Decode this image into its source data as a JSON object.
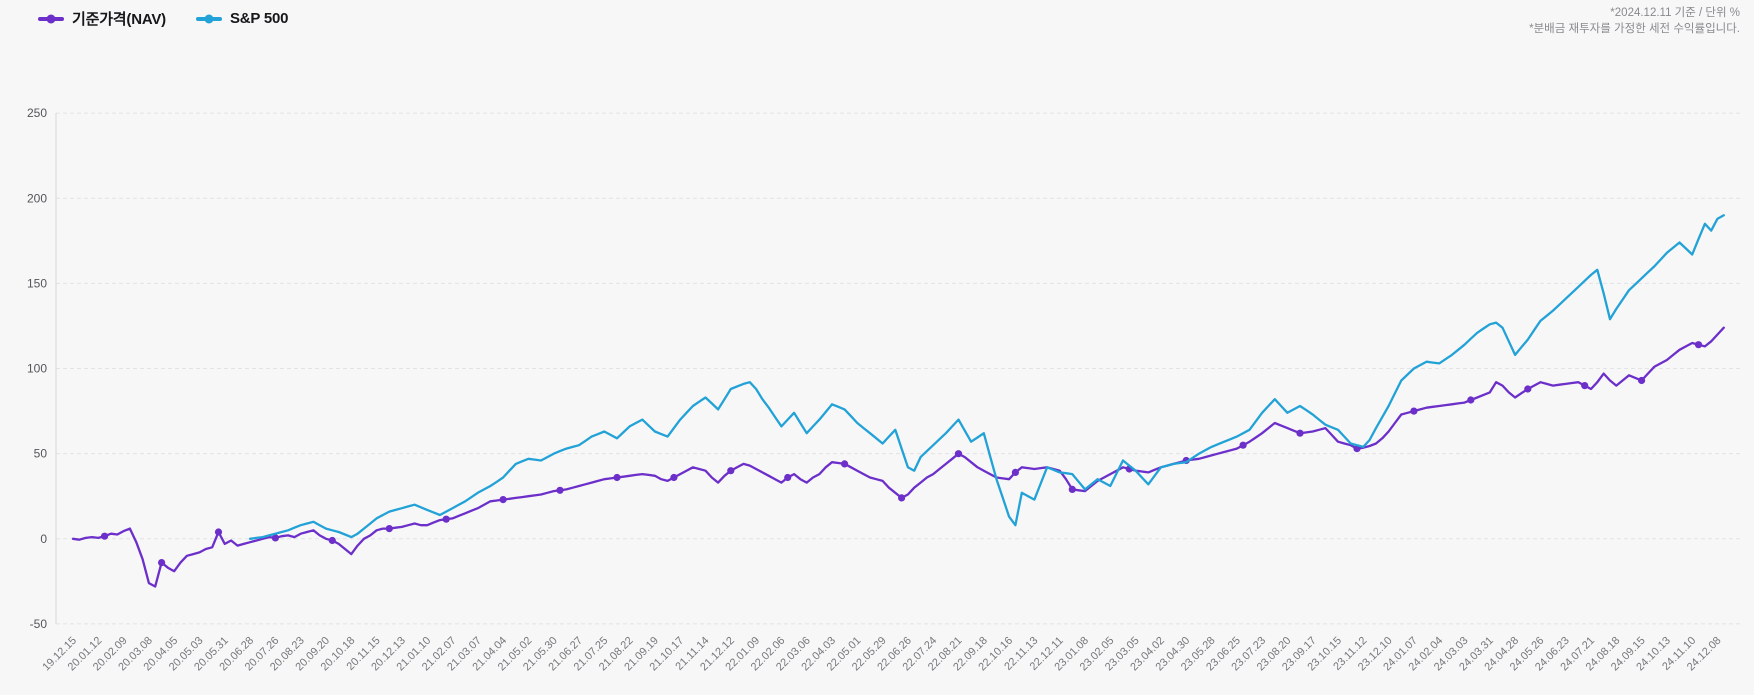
{
  "legend": [
    {
      "label": "기준가격(NAV)",
      "color": "#6c2fc9"
    },
    {
      "label": "S&P 500",
      "color": "#22a2d6"
    }
  ],
  "annotations": {
    "line1": "*2024.12.11 기준 / 단위 %",
    "line2": "*분배금 재투자를 가정한 세전 수익률입니다."
  },
  "chart_data": {
    "type": "line",
    "title": "",
    "xlabel": "",
    "ylabel": "",
    "x_unit": "weeks since 2019-12-15",
    "weeks_per_tick": 4,
    "ylim": [
      -50,
      250
    ],
    "y_ticks": [
      250,
      200,
      150,
      100,
      50,
      0,
      -50
    ],
    "grid": "horizontal dashed",
    "legend_position": "top-left",
    "x_tick_labels": [
      "19.12.15",
      "20.01.12",
      "20.02.09",
      "20.03.08",
      "20.04.05",
      "20.05.03",
      "20.05.31",
      "20.06.28",
      "20.07.26",
      "20.08.23",
      "20.09.20",
      "20.10.18",
      "20.11.15",
      "20.12.13",
      "21.01.10",
      "21.02.07",
      "21.03.07",
      "21.04.04",
      "21.05.02",
      "21.05.30",
      "21.06.27",
      "21.07.25",
      "21.08.22",
      "21.09.19",
      "21.10.17",
      "21.11.14",
      "21.12.12",
      "22.01.09",
      "22.02.06",
      "22.03.06",
      "22.04.03",
      "22.05.01",
      "22.05.29",
      "22.06.26",
      "22.07.24",
      "22.08.21",
      "22.09.18",
      "22.10.16",
      "22.11.13",
      "22.12.11",
      "23.01.08",
      "23.02.05",
      "23.03.05",
      "23.04.02",
      "23.04.30",
      "23.05.28",
      "23.06.25",
      "23.07.23",
      "23.08.20",
      "23.09.17",
      "23.10.15",
      "23.11.12",
      "23.12.10",
      "24.01.07",
      "24.02.04",
      "24.03.03",
      "24.03.31",
      "24.04.28",
      "24.05.26",
      "24.06.23",
      "24.07.21",
      "24.08.18",
      "24.09.15",
      "24.10.13",
      "24.11.10",
      "24.12.08"
    ],
    "series": [
      {
        "name": "기준가격(NAV)",
        "color": "#6c2fc9",
        "start_week": 0,
        "step_weeks": 1,
        "marker_start": 5,
        "marker_every": 9,
        "values": [
          0,
          -0.5,
          0.5,
          1,
          0.5,
          1.5,
          3,
          2.5,
          4.5,
          6,
          -2,
          -12,
          -26,
          -28,
          -14,
          -17,
          -19,
          -14,
          -10,
          -9,
          -8,
          -6,
          -5,
          4,
          -3,
          -1,
          -4,
          -3,
          -2,
          -1,
          0,
          1,
          0.5,
          1.5,
          2,
          1,
          3,
          4,
          5,
          2,
          0,
          -1,
          -3,
          -6,
          -9,
          -4,
          0,
          2,
          5,
          6,
          6,
          6.5,
          7,
          8,
          9,
          8,
          8,
          9.5,
          11,
          11.5,
          12,
          13.5,
          15,
          16.5,
          18,
          20,
          22,
          22.5,
          23,
          23.5,
          24,
          24.5,
          25,
          25.5,
          26,
          27,
          28,
          28.5,
          29,
          30,
          31,
          32,
          33,
          34,
          35,
          35.5,
          36,
          36.5,
          37,
          37.5,
          38,
          37.5,
          37,
          35,
          34,
          36,
          38,
          40,
          42,
          41,
          40,
          36,
          33,
          37,
          40,
          42,
          44,
          43,
          41,
          39,
          37,
          35,
          33,
          36,
          38,
          35,
          33,
          36,
          38,
          42,
          45,
          44.5,
          44,
          42,
          40,
          38,
          36,
          35,
          34,
          30,
          27,
          24,
          26,
          30,
          33,
          36,
          38,
          41,
          44,
          47,
          50,
          48,
          45,
          42,
          40,
          38,
          36,
          35.5,
          35,
          39,
          42,
          41.5,
          41,
          41.5,
          42,
          41,
          40,
          35,
          29,
          28.5,
          28,
          31,
          34,
          36,
          38,
          40,
          42,
          41,
          40,
          39.5,
          39,
          40.5,
          42,
          43,
          44,
          45,
          46,
          46.5,
          47,
          48,
          49,
          50,
          51,
          52,
          53,
          55,
          57,
          59.5,
          62,
          65,
          68,
          66.5,
          65,
          63.5,
          62,
          62.5,
          63,
          64,
          65,
          61,
          57,
          56,
          55,
          53,
          53.5,
          54.5,
          56,
          59,
          63,
          68,
          73,
          74,
          75,
          76,
          77,
          77.5,
          78,
          78.5,
          79,
          79.5,
          80,
          81.5,
          83,
          84.5,
          86,
          92,
          90,
          86,
          83,
          85.5,
          88,
          90,
          92,
          91,
          90,
          90.5,
          91,
          91.5,
          92,
          90,
          88,
          92,
          97,
          93,
          90,
          93,
          96,
          94.5,
          93,
          97,
          101,
          103,
          105,
          108,
          111,
          113,
          115,
          114,
          113,
          116,
          120,
          124
        ]
      },
      {
        "name": "S&P 500",
        "color": "#22a2d6",
        "start_week": 28,
        "step_weeks": 1,
        "values": [
          0,
          0.5,
          1,
          2,
          3,
          4,
          5,
          6.5,
          8,
          9,
          10,
          8,
          6,
          5,
          4,
          2.5,
          1,
          3,
          6,
          9,
          12,
          14,
          16,
          17,
          18,
          19,
          20,
          18.5,
          17,
          15.5,
          14,
          16,
          18,
          20,
          22,
          24.5,
          27,
          29,
          31,
          33.5,
          36,
          40,
          44,
          45.5,
          47,
          46.5,
          46,
          48,
          50,
          51.5,
          53,
          54,
          55,
          57.5,
          60,
          61.5,
          63,
          61,
          59,
          62.5,
          66,
          68,
          70,
          66.5,
          63,
          61.5,
          60,
          65,
          70,
          74,
          78,
          80.5,
          83,
          79.5,
          76,
          82,
          88,
          89.5,
          91,
          92,
          88,
          82,
          77,
          71.5,
          66,
          70,
          74,
          68,
          62,
          66,
          70,
          74.5,
          79,
          77.5,
          76,
          72,
          68,
          65,
          62,
          59,
          56,
          60,
          64,
          53,
          42,
          40,
          48,
          51.5,
          55,
          58.5,
          62,
          66,
          70,
          63.5,
          57,
          59.5,
          62,
          48.5,
          35,
          24,
          13,
          8,
          27,
          25,
          23,
          32.5,
          42,
          40.5,
          39,
          38.5,
          38,
          33.5,
          29,
          32,
          35,
          33,
          31,
          38.5,
          46,
          43,
          40,
          36,
          32,
          37,
          42,
          43,
          44,
          44.5,
          45,
          47.5,
          50,
          52,
          54,
          55.5,
          57,
          58.5,
          60,
          62,
          64,
          69,
          74,
          78,
          82,
          78,
          74,
          76,
          78,
          75.5,
          73,
          70,
          67,
          65.5,
          64,
          60,
          56,
          55,
          54,
          58,
          65,
          71.5,
          78,
          85.5,
          93,
          96.5,
          100,
          102,
          104,
          103.5,
          103,
          105.5,
          108,
          111,
          114,
          117.5,
          121,
          123.5,
          126,
          127,
          124,
          116,
          108,
          112.5,
          117,
          122.5,
          128,
          131,
          134,
          137.5,
          141,
          144.5,
          148,
          151.5,
          155,
          158,
          144,
          129,
          135,
          140.5,
          146,
          149.5,
          153,
          156.5,
          160,
          164,
          168,
          171,
          174,
          170.5,
          167,
          176,
          185,
          181,
          188,
          190
        ]
      }
    ]
  }
}
